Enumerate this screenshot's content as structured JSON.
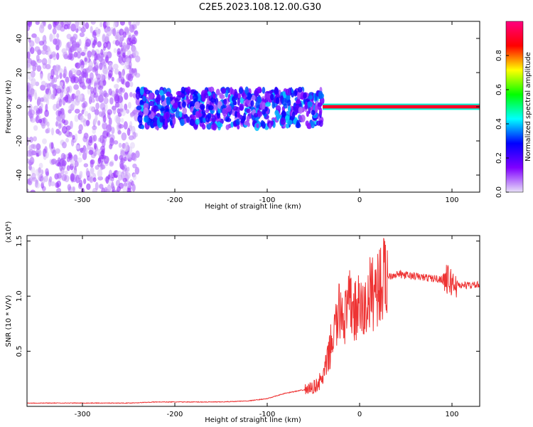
{
  "title": "C2E5.2023.108.12.00.G30",
  "chart_data": [
    {
      "type": "heatmap",
      "xlabel": "Height of straight line (km)",
      "ylabel": "Frequency (Hz)",
      "xlim": [
        -360,
        130
      ],
      "ylim": [
        -50,
        50
      ],
      "xticks": [
        -300,
        -200,
        -100,
        0,
        100
      ],
      "xtick_labels": [
        "-300",
        "-200",
        "-100",
        "0",
        "100"
      ],
      "yticks": [
        -40,
        -20,
        0,
        20,
        40
      ],
      "ytick_labels": [
        "-40",
        "-20",
        "0",
        "20",
        "40"
      ],
      "colorbar": {
        "label": "Normalized spectral amplitude",
        "range": [
          0.0,
          1.0
        ],
        "ticks": [
          0.0,
          0.2,
          0.4,
          0.6,
          0.8
        ],
        "tick_labels": [
          "0.0",
          "0.2",
          "0.4",
          "0.6",
          "0.8"
        ],
        "colors": [
          "#e8e0f8",
          "#8000ff",
          "#0000ff",
          "#00ffff",
          "#00ff00",
          "#ffff00",
          "#ff0000",
          "#ff0080"
        ]
      },
      "regions": [
        {
          "x_range": [
            -360,
            -240
          ],
          "freq_range": [
            -50,
            50
          ],
          "amplitude": 0.05
        },
        {
          "x_range": [
            -240,
            -40
          ],
          "freq_range": [
            -12,
            10
          ],
          "amplitude": 0.2
        },
        {
          "x_range": [
            -40,
            130
          ],
          "freq_range": [
            -1,
            1
          ],
          "amplitude": 0.9
        }
      ]
    },
    {
      "type": "line",
      "xlabel": "Height of straight line (km)",
      "ylabel": "SNR (10 * V/V)",
      "y_scale_label": "(x10⁴)",
      "xlim": [
        -360,
        130
      ],
      "ylim": [
        0,
        1.55
      ],
      "xticks": [
        -300,
        -200,
        -100,
        0,
        100
      ],
      "xtick_labels": [
        "-300",
        "-200",
        "-100",
        "0",
        "100"
      ],
      "yticks": [
        0.5,
        1.0,
        1.5
      ],
      "ytick_labels": [
        "0.5",
        "1.0",
        "1.5"
      ],
      "color": "#ee3333",
      "series": [
        {
          "x": [
            -360,
            -300,
            -250,
            -220,
            -200,
            -150,
            -120,
            -100,
            -80,
            -60,
            -50,
            -40,
            -35,
            -30,
            -25,
            -20,
            -15,
            -10,
            -5,
            0,
            5,
            10,
            20,
            30,
            40,
            60,
            80,
            95,
            100,
            110,
            120,
            130
          ],
          "y": [
            0.03,
            0.03,
            0.03,
            0.04,
            0.04,
            0.04,
            0.05,
            0.07,
            0.12,
            0.15,
            0.17,
            0.25,
            0.4,
            0.6,
            0.75,
            0.9,
            0.8,
            0.95,
            0.85,
            0.9,
            0.85,
            1.0,
            1.1,
            1.18,
            1.2,
            1.18,
            1.16,
            1.15,
            1.12,
            1.1,
            1.1,
            1.1
          ]
        }
      ]
    }
  ]
}
